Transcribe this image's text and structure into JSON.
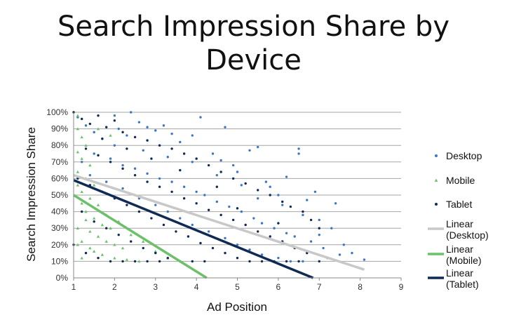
{
  "chart_data": {
    "type": "scatter",
    "title_lines": [
      "Search Impression Share by",
      "Device"
    ],
    "xlabel": "Ad Position",
    "ylabel": "Search Impression Share",
    "xlim": [
      1,
      9
    ],
    "ylim": [
      0,
      100
    ],
    "x_ticks": [
      "1",
      "2",
      "3",
      "4",
      "5",
      "6",
      "7",
      "8",
      "9"
    ],
    "y_ticks": [
      "0%",
      "10%",
      "20%",
      "30%",
      "40%",
      "50%",
      "60%",
      "70%",
      "80%",
      "90%",
      "100%"
    ],
    "grid": "horizontal",
    "legend_position": "right",
    "series": [
      {
        "name": "Desktop",
        "marker": "dot",
        "color": "#3a78c4",
        "points": [
          [
            1.1,
            97
          ],
          [
            1.3,
            92
          ],
          [
            1.5,
            88
          ],
          [
            1.7,
            84
          ],
          [
            2.0,
            98
          ],
          [
            2.1,
            90
          ],
          [
            2.3,
            86
          ],
          [
            2.4,
            100
          ],
          [
            2.6,
            94
          ],
          [
            2.8,
            91
          ],
          [
            3.0,
            89
          ],
          [
            3.2,
            92
          ],
          [
            3.4,
            87
          ],
          [
            3.6,
            82
          ],
          [
            3.9,
            86
          ],
          [
            4.1,
            97
          ],
          [
            4.4,
            75
          ],
          [
            4.6,
            71
          ],
          [
            4.7,
            91
          ],
          [
            4.9,
            68
          ],
          [
            5.0,
            64
          ],
          [
            5.3,
            77
          ],
          [
            5.5,
            79
          ],
          [
            5.7,
            58
          ],
          [
            5.8,
            55
          ],
          [
            6.0,
            50
          ],
          [
            6.2,
            61
          ],
          [
            6.5,
            78
          ],
          [
            6.5,
            75
          ],
          [
            6.7,
            47
          ],
          [
            6.9,
            52
          ],
          [
            7.0,
            35
          ],
          [
            7.3,
            30
          ],
          [
            7.4,
            45
          ],
          [
            7.6,
            20
          ],
          [
            7.8,
            15
          ],
          [
            8.1,
            11
          ],
          [
            1.5,
            75
          ],
          [
            1.9,
            72
          ],
          [
            2.2,
            68
          ],
          [
            2.5,
            66
          ],
          [
            2.8,
            63
          ],
          [
            3.1,
            60
          ],
          [
            3.4,
            58
          ],
          [
            3.7,
            55
          ],
          [
            4.0,
            52
          ],
          [
            4.2,
            50
          ],
          [
            4.5,
            46
          ],
          [
            4.8,
            43
          ],
          [
            5.1,
            40
          ],
          [
            5.4,
            36
          ],
          [
            5.6,
            33
          ],
          [
            5.9,
            30
          ],
          [
            6.2,
            27
          ],
          [
            6.4,
            25
          ],
          [
            6.8,
            22
          ],
          [
            7.1,
            18
          ],
          [
            7.2,
            12
          ],
          [
            1.2,
            70
          ],
          [
            1.4,
            62
          ],
          [
            1.8,
            58
          ],
          [
            2.2,
            54
          ],
          [
            2.6,
            48
          ],
          [
            3.0,
            44
          ],
          [
            3.3,
            40
          ],
          [
            3.6,
            36
          ],
          [
            3.9,
            32
          ],
          [
            4.3,
            28
          ],
          [
            4.7,
            24
          ],
          [
            5.0,
            20
          ],
          [
            5.3,
            17
          ],
          [
            5.6,
            14
          ],
          [
            6.0,
            12
          ],
          [
            6.3,
            10
          ],
          [
            6.6,
            10
          ],
          [
            2.0,
            80
          ],
          [
            2.7,
            77
          ],
          [
            3.3,
            73
          ],
          [
            3.9,
            70
          ],
          [
            4.5,
            62
          ],
          [
            5.1,
            56
          ],
          [
            5.5,
            48
          ],
          [
            6.1,
            44
          ],
          [
            6.6,
            38
          ],
          [
            7.0,
            26
          ],
          [
            7.5,
            14
          ]
        ]
      },
      {
        "name": "Mobile",
        "marker": "triangle",
        "color": "#6cc06a",
        "points": [
          [
            1.1,
            98
          ],
          [
            1.1,
            90
          ],
          [
            1.2,
            85
          ],
          [
            1.3,
            80
          ],
          [
            1.1,
            76
          ],
          [
            1.2,
            72
          ],
          [
            1.4,
            68
          ],
          [
            1.1,
            64
          ],
          [
            1.3,
            60
          ],
          [
            1.5,
            56
          ],
          [
            1.2,
            52
          ],
          [
            1.4,
            48
          ],
          [
            1.6,
            44
          ],
          [
            1.3,
            40
          ],
          [
            1.5,
            36
          ],
          [
            1.7,
            32
          ],
          [
            1.9,
            30
          ],
          [
            1.4,
            28
          ],
          [
            1.6,
            25
          ],
          [
            1.8,
            22
          ],
          [
            2.0,
            20
          ],
          [
            2.2,
            18
          ],
          [
            1.5,
            16
          ],
          [
            1.7,
            14
          ],
          [
            2.0,
            12
          ],
          [
            2.3,
            11
          ],
          [
            2.6,
            10
          ],
          [
            1.2,
            45
          ],
          [
            1.3,
            35
          ],
          [
            1.1,
            30
          ],
          [
            1.2,
            22
          ],
          [
            1.4,
            18
          ],
          [
            1.8,
            38
          ],
          [
            2.1,
            34
          ],
          [
            2.4,
            26
          ],
          [
            2.7,
            22
          ],
          [
            3.0,
            16
          ],
          [
            3.3,
            12
          ],
          [
            1.6,
            90
          ],
          [
            1.9,
            86
          ],
          [
            1.1,
            56
          ],
          [
            1.2,
            12
          ],
          [
            1.1,
            20
          ]
        ]
      },
      {
        "name": "Tablet",
        "marker": "dot",
        "color": "#0f2a54",
        "points": [
          [
            1.0,
            100
          ],
          [
            1.2,
            96
          ],
          [
            1.4,
            93
          ],
          [
            1.6,
            98
          ],
          [
            1.8,
            91
          ],
          [
            2.0,
            95
          ],
          [
            2.2,
            88
          ],
          [
            2.5,
            85
          ],
          [
            2.8,
            83
          ],
          [
            3.1,
            80
          ],
          [
            3.4,
            78
          ],
          [
            3.7,
            75
          ],
          [
            4.0,
            72
          ],
          [
            4.3,
            68
          ],
          [
            4.6,
            64
          ],
          [
            4.9,
            60
          ],
          [
            5.2,
            57
          ],
          [
            5.5,
            53
          ],
          [
            5.8,
            50
          ],
          [
            6.1,
            46
          ],
          [
            6.3,
            43
          ],
          [
            6.6,
            40
          ],
          [
            6.8,
            35
          ],
          [
            7.0,
            30
          ],
          [
            1.3,
            78
          ],
          [
            1.6,
            74
          ],
          [
            1.9,
            70
          ],
          [
            2.2,
            66
          ],
          [
            2.5,
            62
          ],
          [
            2.8,
            58
          ],
          [
            3.1,
            55
          ],
          [
            3.4,
            52
          ],
          [
            3.7,
            48
          ],
          [
            4.0,
            45
          ],
          [
            4.3,
            41
          ],
          [
            4.6,
            38
          ],
          [
            4.9,
            35
          ],
          [
            5.2,
            32
          ],
          [
            5.5,
            28
          ],
          [
            5.8,
            25
          ],
          [
            6.1,
            22
          ],
          [
            6.4,
            18
          ],
          [
            6.7,
            15
          ],
          [
            7.0,
            10
          ],
          [
            1.1,
            60
          ],
          [
            1.4,
            56
          ],
          [
            1.7,
            52
          ],
          [
            2.0,
            48
          ],
          [
            2.3,
            44
          ],
          [
            2.6,
            40
          ],
          [
            2.9,
            36
          ],
          [
            3.2,
            32
          ],
          [
            3.5,
            28
          ],
          [
            3.8,
            25
          ],
          [
            4.1,
            21
          ],
          [
            4.4,
            18
          ],
          [
            4.7,
            15
          ],
          [
            5.0,
            12
          ],
          [
            5.3,
            10
          ],
          [
            5.6,
            10
          ],
          [
            5.9,
            10
          ],
          [
            6.2,
            10
          ],
          [
            6.5,
            10
          ],
          [
            1.2,
            40
          ],
          [
            1.5,
            34
          ],
          [
            1.8,
            30
          ],
          [
            2.1,
            26
          ],
          [
            2.4,
            22
          ],
          [
            2.7,
            18
          ],
          [
            3.0,
            15
          ],
          [
            3.3,
            12
          ],
          [
            3.6,
            10
          ],
          [
            3.9,
            10
          ],
          [
            4.2,
            10
          ],
          [
            1.0,
            20
          ],
          [
            1.3,
            15
          ],
          [
            1.6,
            12
          ],
          [
            1.9,
            10
          ],
          [
            2.2,
            10
          ],
          [
            2.5,
            10
          ],
          [
            2.8,
            10
          ],
          [
            3.1,
            10
          ],
          [
            6.0,
            33
          ],
          [
            5.0,
            42
          ],
          [
            4.5,
            55
          ],
          [
            3.6,
            65
          ],
          [
            2.9,
            72
          ],
          [
            2.3,
            78
          ],
          [
            1.7,
            84
          ]
        ]
      }
    ],
    "trendlines": [
      {
        "name": "Linear (Desktop)",
        "label_lines": [
          "Linear",
          "(Desktop)"
        ],
        "color": "#c8c8c8",
        "x": [
          1.0,
          8.1
        ],
        "y": [
          62,
          5
        ]
      },
      {
        "name": "Linear (Mobile)",
        "label_lines": [
          "Linear",
          "(Mobile)"
        ],
        "color": "#6cc06a",
        "x": [
          1.0,
          4.25
        ],
        "y": [
          50,
          0
        ]
      },
      {
        "name": "Linear (Tablet)",
        "label_lines": [
          "Linear",
          "(Tablet)"
        ],
        "color": "#0f2a54",
        "x": [
          1.0,
          6.85
        ],
        "y": [
          59,
          0
        ]
      }
    ]
  }
}
